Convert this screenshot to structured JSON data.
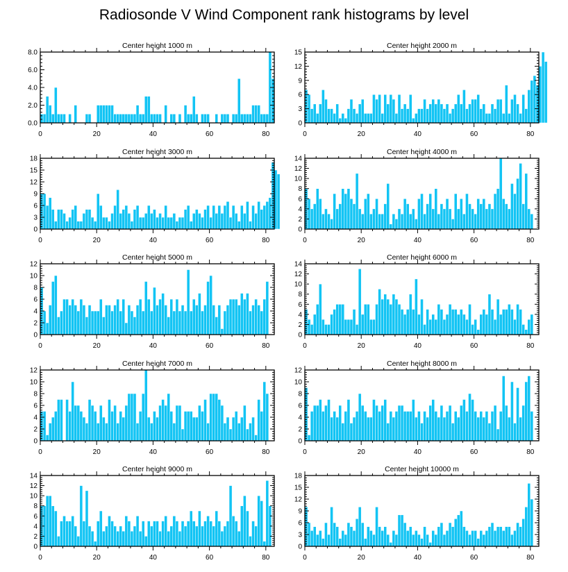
{
  "title": "Radiosonde V Wind Component rank histograms by level",
  "colors": {
    "bar": "#12c4f4",
    "axis": "#000000",
    "background": "#ffffff"
  },
  "chart_data": [
    {
      "type": "bar",
      "title": "Center height 1000 m",
      "xlabel": "",
      "ylabel": "",
      "xlim": [
        0,
        83
      ],
      "ylim": [
        0,
        8
      ],
      "yticks": [
        0,
        2,
        4,
        6,
        8
      ],
      "ytick_labels": [
        "0.0",
        "2.0",
        "4.0",
        "6.0",
        "8.0"
      ],
      "xticks": [
        0,
        20,
        40,
        60,
        80
      ],
      "values": [
        1,
        1,
        3,
        2,
        1,
        4,
        1,
        1,
        1,
        0,
        1,
        0,
        2,
        0,
        0,
        0,
        1,
        1,
        0,
        0,
        2,
        2,
        2,
        2,
        2,
        2,
        1,
        1,
        1,
        1,
        1,
        1,
        1,
        1,
        2,
        1,
        1,
        3,
        3,
        1,
        1,
        1,
        1,
        0,
        2,
        0,
        1,
        1,
        0,
        1,
        0,
        2,
        1,
        1,
        3,
        1,
        0,
        1,
        1,
        1,
        0,
        0,
        1,
        0,
        1,
        1,
        1,
        0,
        1,
        1,
        5,
        1,
        1,
        1,
        1,
        2,
        2,
        2,
        1,
        1,
        1,
        8,
        5
      ]
    },
    {
      "type": "bar",
      "title": "Center height 2000 m",
      "xlabel": "",
      "ylabel": "",
      "xlim": [
        0,
        83
      ],
      "ylim": [
        0,
        15
      ],
      "yticks": [
        0,
        3,
        6,
        9,
        12,
        15
      ],
      "ytick_labels": [
        "0",
        "3",
        "6",
        "9",
        "12",
        "15"
      ],
      "xticks": [
        0,
        20,
        40,
        60,
        80
      ],
      "values": [
        7,
        6,
        3,
        4,
        2,
        4,
        7,
        5,
        3,
        3,
        2,
        4,
        1,
        2,
        1,
        3,
        5,
        3,
        2,
        4,
        5,
        2,
        2,
        2,
        6,
        5,
        6,
        2,
        6,
        4,
        6,
        5,
        2,
        6,
        3,
        4,
        3,
        6,
        1,
        2,
        3,
        3,
        5,
        3,
        4,
        5,
        4,
        5,
        4,
        3,
        4,
        2,
        3,
        4,
        6,
        4,
        7,
        3,
        4,
        5,
        5,
        6,
        3,
        4,
        2,
        2,
        4,
        3,
        5,
        5,
        2,
        8,
        2,
        5,
        6,
        4,
        2,
        6,
        3,
        7,
        9,
        10,
        8,
        12,
        15,
        13
      ]
    },
    {
      "type": "bar",
      "title": "Center height 3000 m",
      "xlabel": "",
      "ylabel": "",
      "xlim": [
        0,
        83
      ],
      "ylim": [
        0,
        18
      ],
      "yticks": [
        0,
        3,
        6,
        9,
        12,
        15,
        18
      ],
      "ytick_labels": [
        "0",
        "3",
        "6",
        "9",
        "12",
        "15",
        "18"
      ],
      "xticks": [
        0,
        20,
        40,
        60,
        80
      ],
      "values": [
        9,
        9,
        6,
        8,
        5,
        2,
        5,
        5,
        4,
        2,
        3,
        5,
        6,
        2,
        2,
        4,
        5,
        5,
        3,
        2,
        9,
        6,
        3,
        3,
        2,
        4,
        6,
        10,
        4,
        5,
        6,
        4,
        2,
        5,
        6,
        3,
        3,
        4,
        6,
        4,
        5,
        3,
        4,
        3,
        6,
        3,
        3,
        4,
        2,
        3,
        3,
        5,
        6,
        2,
        4,
        5,
        4,
        3,
        5,
        6,
        3,
        6,
        4,
        6,
        4,
        6,
        7,
        3,
        6,
        4,
        2,
        6,
        4,
        7,
        2,
        6,
        4,
        7,
        5,
        6,
        7,
        8,
        17,
        15,
        14
      ]
    },
    {
      "type": "bar",
      "title": "Center height 4000 m",
      "xlabel": "",
      "ylabel": "",
      "xlim": [
        0,
        83
      ],
      "ylim": [
        0,
        14
      ],
      "yticks": [
        0,
        2,
        4,
        6,
        8,
        10,
        12,
        14
      ],
      "ytick_labels": [
        "0",
        "2",
        "4",
        "6",
        "8",
        "10",
        "12",
        "14"
      ],
      "xticks": [
        0,
        20,
        40,
        60,
        80
      ],
      "values": [
        8,
        6,
        4,
        5,
        8,
        6,
        3,
        4,
        3,
        2,
        7,
        4,
        5,
        8,
        7,
        8,
        6,
        5,
        11,
        4,
        3,
        6,
        7,
        3,
        4,
        6,
        3,
        3,
        5,
        9,
        1,
        3,
        2,
        4,
        3,
        6,
        5,
        3,
        4,
        2,
        6,
        7,
        3,
        5,
        7,
        4,
        8,
        3,
        5,
        4,
        6,
        4,
        2,
        7,
        4,
        6,
        3,
        7,
        5,
        4,
        3,
        6,
        5,
        6,
        4,
        5,
        4,
        7,
        8,
        14,
        6,
        5,
        4,
        9,
        7,
        10,
        13,
        5,
        11,
        4,
        3
      ]
    },
    {
      "type": "bar",
      "title": "Center height 5000 m",
      "xlabel": "",
      "ylabel": "",
      "xlim": [
        0,
        83
      ],
      "ylim": [
        0,
        12
      ],
      "yticks": [
        0,
        2,
        4,
        6,
        8,
        10,
        12
      ],
      "ytick_labels": [
        "0",
        "2",
        "4",
        "6",
        "8",
        "10",
        "12"
      ],
      "xticks": [
        0,
        20,
        40,
        60,
        80
      ],
      "values": [
        8,
        4,
        2,
        5,
        9,
        10,
        3,
        4,
        6,
        6,
        5,
        6,
        5,
        4,
        6,
        5,
        3,
        5,
        4,
        4,
        4,
        6,
        3,
        5,
        5,
        4,
        5,
        6,
        4,
        6,
        2,
        5,
        4,
        3,
        5,
        6,
        4,
        9,
        6,
        4,
        8,
        5,
        6,
        7,
        5,
        3,
        6,
        4,
        6,
        4,
        5,
        4,
        11,
        4,
        6,
        5,
        7,
        4,
        5,
        9,
        10,
        5,
        3,
        5,
        1,
        4,
        5,
        6,
        6,
        6,
        5,
        7,
        6,
        7,
        4,
        5,
        6,
        5,
        4,
        6,
        9
      ]
    },
    {
      "type": "bar",
      "title": "Center height 6000 m",
      "xlabel": "",
      "ylabel": "",
      "xlim": [
        0,
        83
      ],
      "ylim": [
        0,
        14
      ],
      "yticks": [
        0,
        2,
        4,
        6,
        8,
        10,
        12,
        14
      ],
      "ytick_labels": [
        "0",
        "2",
        "4",
        "6",
        "8",
        "10",
        "12",
        "14"
      ],
      "xticks": [
        0,
        20,
        40,
        60,
        80
      ],
      "values": [
        5,
        3,
        2,
        4,
        6,
        10,
        3,
        2,
        2,
        4,
        5,
        6,
        6,
        6,
        3,
        3,
        3,
        5,
        2,
        13,
        4,
        6,
        6,
        3,
        3,
        6,
        9,
        7,
        8,
        7,
        6,
        8,
        7,
        6,
        5,
        4,
        5,
        8,
        5,
        11,
        4,
        7,
        2,
        5,
        3,
        4,
        3,
        6,
        5,
        3,
        4,
        6,
        5,
        5,
        4,
        5,
        4,
        3,
        6,
        2,
        3,
        1,
        4,
        5,
        4,
        8,
        5,
        3,
        7,
        4,
        5,
        5,
        6,
        5,
        3,
        6,
        5,
        2,
        1,
        3,
        4
      ]
    },
    {
      "type": "bar",
      "title": "Center height 7000 m",
      "xlabel": "",
      "ylabel": "",
      "xlim": [
        0,
        83
      ],
      "ylim": [
        0,
        12
      ],
      "yticks": [
        0,
        2,
        4,
        6,
        8,
        10,
        12
      ],
      "ytick_labels": [
        "0",
        "2",
        "4",
        "6",
        "8",
        "10",
        "12"
      ],
      "xticks": [
        0,
        20,
        40,
        60,
        80
      ],
      "values": [
        5,
        5,
        1,
        3,
        4,
        5,
        7,
        7,
        0,
        7,
        5,
        10,
        6,
        6,
        5,
        4,
        3,
        7,
        6,
        5,
        3,
        6,
        4,
        3,
        7,
        5,
        6,
        3,
        5,
        4,
        6,
        8,
        8,
        8,
        3,
        5,
        8,
        12,
        4,
        3,
        5,
        4,
        6,
        7,
        6,
        8,
        5,
        3,
        6,
        6,
        2,
        5,
        5,
        5,
        4,
        4,
        6,
        5,
        7,
        3,
        8,
        8,
        8,
        7,
        6,
        3,
        4,
        2,
        4,
        5,
        3,
        4,
        6,
        2,
        3,
        4,
        1,
        7,
        5,
        10,
        8
      ]
    },
    {
      "type": "bar",
      "title": "Center height 8000 m",
      "xlabel": "",
      "ylabel": "",
      "xlim": [
        0,
        83
      ],
      "ylim": [
        0,
        12
      ],
      "yticks": [
        0,
        2,
        4,
        6,
        8,
        10,
        12
      ],
      "ytick_labels": [
        "0",
        "2",
        "4",
        "6",
        "8",
        "10",
        "12"
      ],
      "xticks": [
        0,
        20,
        40,
        60,
        80
      ],
      "values": [
        9,
        1,
        5,
        6,
        6,
        7,
        5,
        6,
        7,
        4,
        5,
        4,
        6,
        3,
        5,
        7,
        3,
        4,
        5,
        8,
        6,
        5,
        4,
        4,
        7,
        6,
        5,
        6,
        7,
        3,
        5,
        4,
        5,
        6,
        6,
        5,
        5,
        5,
        7,
        4,
        5,
        3,
        5,
        4,
        6,
        7,
        5,
        4,
        6,
        4,
        5,
        6,
        3,
        5,
        4,
        6,
        7,
        5,
        8,
        7,
        5,
        4,
        5,
        4,
        5,
        3,
        5,
        6,
        2,
        5,
        11,
        6,
        4,
        10,
        3,
        9,
        4,
        6,
        10,
        11,
        5
      ]
    },
    {
      "type": "bar",
      "title": "Center height 9000 m",
      "xlabel": "",
      "ylabel": "",
      "xlim": [
        0,
        83
      ],
      "ylim": [
        0,
        14
      ],
      "yticks": [
        0,
        2,
        4,
        6,
        8,
        10,
        12,
        14
      ],
      "ytick_labels": [
        "0",
        "2",
        "4",
        "6",
        "8",
        "10",
        "12",
        "14"
      ],
      "xticks": [
        0,
        20,
        40,
        60,
        80
      ],
      "values": [
        8,
        8,
        10,
        10,
        8,
        7,
        2,
        5,
        6,
        5,
        5,
        6,
        4,
        2,
        12,
        5,
        11,
        4,
        3,
        1,
        5,
        7,
        3,
        4,
        6,
        5,
        4,
        3,
        4,
        3,
        6,
        5,
        3,
        4,
        6,
        3,
        5,
        2,
        5,
        4,
        5,
        5,
        3,
        5,
        6,
        3,
        4,
        6,
        5,
        3,
        5,
        4,
        5,
        7,
        5,
        4,
        7,
        4,
        5,
        6,
        5,
        4,
        7,
        5,
        3,
        4,
        5,
        12,
        6,
        5,
        3,
        8,
        10,
        7,
        2,
        5,
        4,
        10,
        9,
        1,
        13,
        8
      ]
    },
    {
      "type": "bar",
      "title": "Center height 10000 m",
      "xlabel": "",
      "ylabel": "",
      "xlim": [
        0,
        83
      ],
      "ylim": [
        0,
        18
      ],
      "yticks": [
        0,
        3,
        6,
        9,
        12,
        15,
        18
      ],
      "ytick_labels": [
        "0",
        "3",
        "6",
        "9",
        "12",
        "15",
        "18"
      ],
      "xticks": [
        0,
        20,
        40,
        60,
        80
      ],
      "values": [
        10,
        6,
        4,
        5,
        3,
        4,
        2,
        6,
        3,
        10,
        6,
        5,
        2,
        4,
        3,
        6,
        5,
        4,
        7,
        10,
        6,
        2,
        5,
        4,
        3,
        10,
        5,
        4,
        5,
        3,
        1,
        4,
        3,
        8,
        8,
        6,
        4,
        5,
        3,
        4,
        3,
        2,
        5,
        3,
        1,
        4,
        3,
        5,
        6,
        3,
        4,
        6,
        5,
        7,
        8,
        9,
        5,
        4,
        3,
        4,
        4,
        2,
        4,
        3,
        4,
        5,
        6,
        4,
        5,
        5,
        4,
        5,
        5,
        3,
        4,
        6,
        5,
        7,
        10,
        16,
        12
      ]
    }
  ]
}
